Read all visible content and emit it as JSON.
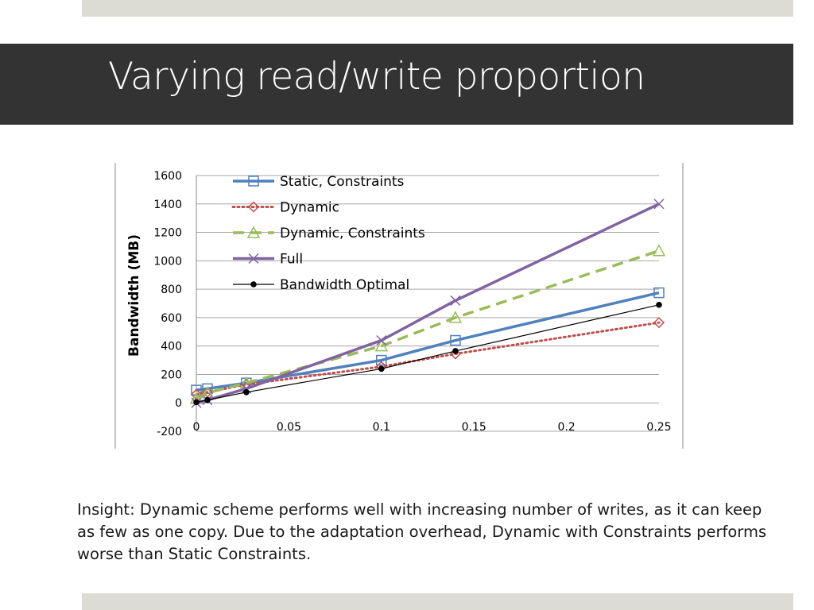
{
  "slide": {
    "title": "Varying read/write proportion",
    "insight": "Insight: Dynamic scheme performs well with increasing number of writes, as it can keep as few as one copy.  Due to the adaptation overhead, Dynamic with Constraints performs worse than Static Constraints."
  },
  "colors": {
    "title_bar": "#333333",
    "band": "#dcdcd5"
  },
  "chart_data": {
    "type": "line",
    "title": "",
    "xlabel": "",
    "ylabel": "Bandwidth (MB)",
    "xlim": [
      0,
      0.25
    ],
    "ylim": [
      -200,
      1600
    ],
    "x_ticks": [
      "0",
      "0.05",
      "0.1",
      "0.15",
      "0.2",
      "0.25"
    ],
    "y_ticks": [
      "1600",
      "1400",
      "1200",
      "1000",
      "800",
      "600",
      "400",
      "200",
      "0",
      "-200"
    ],
    "grid": true,
    "legend_position": "top-left",
    "series": [
      {
        "name": "Static, Constraints",
        "color": "#4f81bd",
        "marker": "square",
        "line": "solid",
        "points": [
          [
            0,
            90
          ],
          [
            0.006,
            100
          ],
          [
            0.027,
            140
          ],
          [
            0.1,
            300
          ],
          [
            0.14,
            440
          ],
          [
            0.25,
            775
          ]
        ]
      },
      {
        "name": "Dynamic",
        "color": "#c0504d",
        "marker": "diamond",
        "line": "dotted",
        "points": [
          [
            0,
            60
          ],
          [
            0.006,
            75
          ],
          [
            0.027,
            130
          ],
          [
            0.1,
            255
          ],
          [
            0.14,
            345
          ],
          [
            0.25,
            565
          ]
        ]
      },
      {
        "name": "Dynamic, Constraints",
        "color": "#9bbb59",
        "marker": "triangle",
        "line": "dashed",
        "points": [
          [
            0,
            30
          ],
          [
            0.006,
            70
          ],
          [
            0.027,
            140
          ],
          [
            0.1,
            400
          ],
          [
            0.14,
            600
          ],
          [
            0.25,
            1070
          ]
        ]
      },
      {
        "name": "Full",
        "color": "#8064a2",
        "marker": "x",
        "line": "solid",
        "points": [
          [
            0,
            0
          ],
          [
            0.006,
            20
          ],
          [
            0.027,
            100
          ],
          [
            0.1,
            440
          ],
          [
            0.14,
            720
          ],
          [
            0.25,
            1400
          ]
        ]
      },
      {
        "name": "Bandwidth Optimal",
        "color": "#000000",
        "marker": "dot",
        "line": "solid",
        "points": [
          [
            0,
            5
          ],
          [
            0.006,
            20
          ],
          [
            0.027,
            75
          ],
          [
            0.1,
            240
          ],
          [
            0.14,
            365
          ],
          [
            0.25,
            690
          ]
        ]
      }
    ]
  }
}
